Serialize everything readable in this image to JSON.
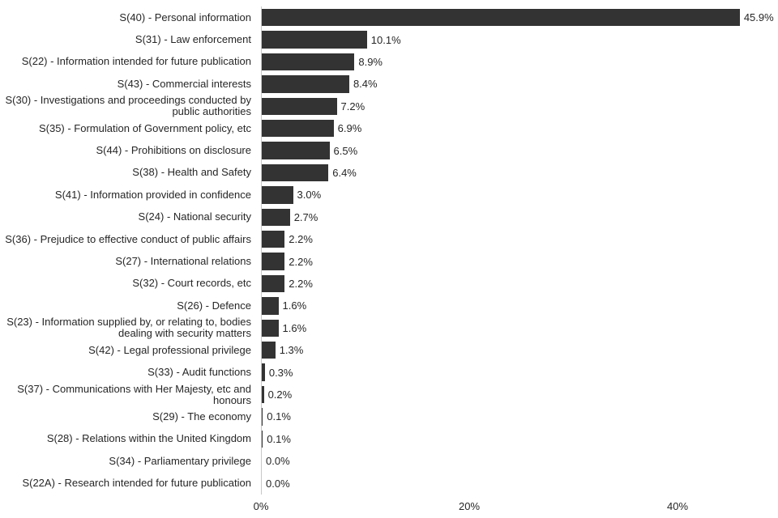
{
  "chart_data": {
    "type": "bar",
    "orientation": "horizontal",
    "categories": [
      "S(40) - Personal information",
      "S(31) - Law enforcement",
      "S(22) - Information intended for future publication",
      "S(43) - Commercial interests",
      "S(30) - Investigations and proceedings conducted by public authorities",
      "S(35) - Formulation of Government policy, etc",
      "S(44) - Prohibitions on disclosure",
      "S(38) - Health and Safety",
      "S(41) - Information provided in confidence",
      "S(24) - National security",
      "S(36) - Prejudice to effective conduct of public affairs",
      "S(27) - International relations",
      "S(32) - Court records, etc",
      "S(26) - Defence",
      "S(23) - Information supplied by, or relating to, bodies dealing with security matters",
      "S(42) - Legal professional privilege",
      "S(33) - Audit functions",
      "S(37) - Communications with Her Majesty, etc and honours",
      "S(29) - The economy",
      "S(28) - Relations within the United Kingdom",
      "S(34) - Parliamentary privilege",
      "S(22A) - Research intended for future publication"
    ],
    "values": [
      45.9,
      10.1,
      8.9,
      8.4,
      7.2,
      6.9,
      6.5,
      6.4,
      3.0,
      2.7,
      2.2,
      2.2,
      2.2,
      1.6,
      1.6,
      1.3,
      0.3,
      0.2,
      0.1,
      0.1,
      0.0,
      0.0
    ],
    "value_labels": [
      "45.9%",
      "10.1%",
      "8.9%",
      "8.4%",
      "7.2%",
      "6.9%",
      "6.5%",
      "6.4%",
      "3.0%",
      "2.7%",
      "2.2%",
      "2.2%",
      "2.2%",
      "1.6%",
      "1.6%",
      "1.3%",
      "0.3%",
      "0.2%",
      "0.1%",
      "0.1%",
      "0.0%",
      "0.0%"
    ],
    "x_ticks": [
      {
        "value": 0,
        "label": "0%"
      },
      {
        "value": 20,
        "label": "20%"
      },
      {
        "value": 40,
        "label": "40%"
      }
    ],
    "xlim": [
      0,
      49.6
    ],
    "grid": "off",
    "legend": "none",
    "colors": {
      "bar": "#333333",
      "text": "#262626",
      "axis_line": "#c8c8c8",
      "background": "#ffffff"
    }
  }
}
